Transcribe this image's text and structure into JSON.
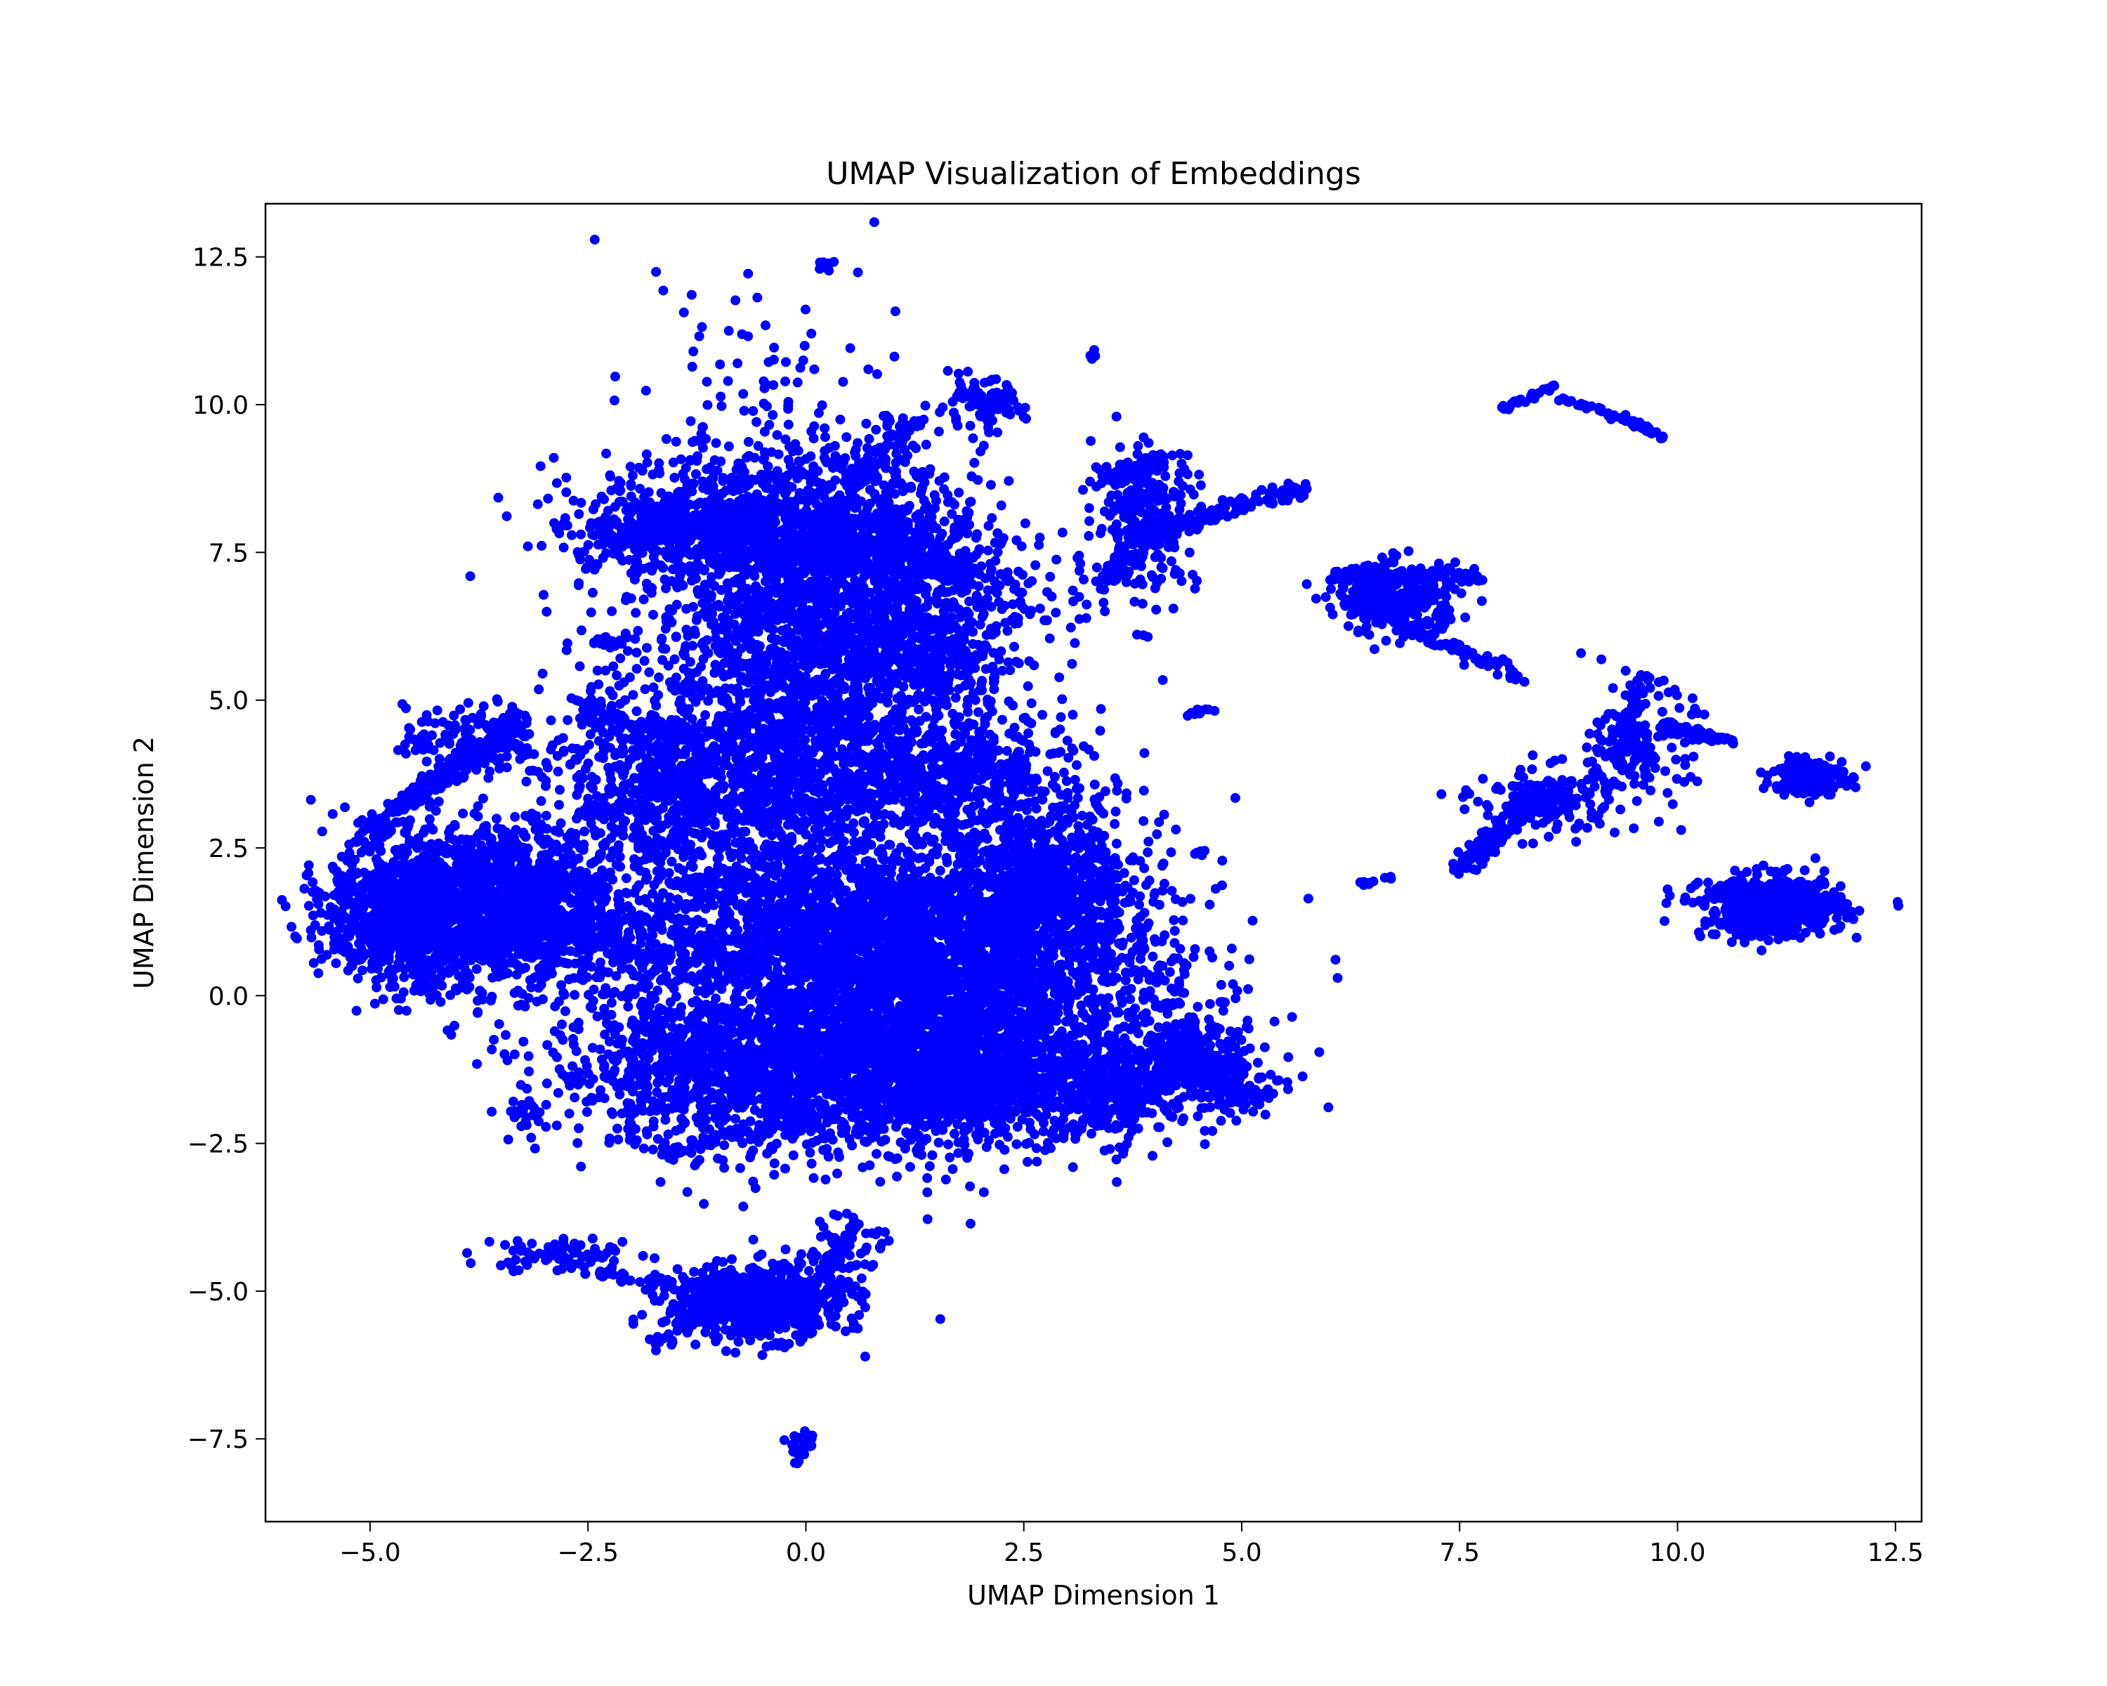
{
  "chart_data": {
    "type": "scatter",
    "title": "UMAP Visualization of Embeddings",
    "xlabel": "UMAP Dimension 1",
    "ylabel": "UMAP Dimension 2",
    "xlim": [
      -6.2,
      12.8
    ],
    "ylim": [
      -8.9,
      13.4
    ],
    "xticks": [
      -5.0,
      -2.5,
      0.0,
      2.5,
      5.0,
      7.5,
      10.0,
      12.5
    ],
    "xtick_labels": [
      "−5.0",
      "−2.5",
      "0.0",
      "2.5",
      "5.0",
      "7.5",
      "10.0",
      "12.5"
    ],
    "yticks": [
      -7.5,
      -5.0,
      -2.5,
      0.0,
      2.5,
      5.0,
      7.5,
      10.0,
      12.5
    ],
    "ytick_labels": [
      "−7.5",
      "−5.0",
      "−2.5",
      "0.0",
      "2.5",
      "5.0",
      "7.5",
      "10.0",
      "12.5"
    ],
    "grid": false,
    "point_color": "#0000ff",
    "clusters": [
      {
        "cx": -0.3,
        "cy": 4.5,
        "sx": 0.9,
        "sy": 2.6,
        "n": 2600
      },
      {
        "cx": -0.2,
        "cy": 8.0,
        "sx": 1.1,
        "sy": 0.6,
        "n": 900
      },
      {
        "cx": -1.5,
        "cy": 7.9,
        "sx": 0.6,
        "sy": 0.25,
        "n": 200
      },
      {
        "cx": 0.9,
        "cy": 6.8,
        "sx": 0.9,
        "sy": 0.7,
        "n": 700
      },
      {
        "cx": 1.2,
        "cy": 5.5,
        "sx": 0.6,
        "sy": 0.4,
        "n": 300
      },
      {
        "cx": 1.5,
        "cy": 3.8,
        "sx": 0.8,
        "sy": 0.5,
        "n": 600
      },
      {
        "cx": 1.8,
        "cy": 0.2,
        "sx": 1.2,
        "sy": 1.2,
        "n": 3000
      },
      {
        "cx": 1.6,
        "cy": -1.4,
        "sx": 0.9,
        "sy": 0.5,
        "n": 1200
      },
      {
        "cx": 2.7,
        "cy": 2.0,
        "sx": 0.5,
        "sy": 0.7,
        "n": 600
      },
      {
        "cx": 0.4,
        "cy": 1.0,
        "sx": 0.8,
        "sy": 0.7,
        "n": 700
      },
      {
        "cx": -0.8,
        "cy": -1.2,
        "sx": 1.1,
        "sy": 0.7,
        "n": 1200
      },
      {
        "cx": -1.8,
        "cy": 3.5,
        "sx": 0.6,
        "sy": 0.7,
        "n": 500
      },
      {
        "cx": -4.5,
        "cy": 1.4,
        "sx": 0.5,
        "sy": 0.6,
        "n": 1100
      },
      {
        "cx": -3.4,
        "cy": 1.6,
        "sx": 0.6,
        "sy": 0.7,
        "n": 900
      },
      {
        "cx": -3.8,
        "cy": 4.3,
        "sx": 0.4,
        "sy": 0.3,
        "n": 150
      },
      {
        "cx": -2.2,
        "cy": 1.0,
        "sx": 0.6,
        "sy": 0.5,
        "n": 300
      },
      {
        "cx": 4.4,
        "cy": -1.2,
        "sx": 0.5,
        "sy": 0.4,
        "n": 350
      },
      {
        "cx": 3.5,
        "cy": -1.9,
        "sx": 0.3,
        "sy": 0.3,
        "n": 100
      },
      {
        "cx": -0.6,
        "cy": -5.2,
        "sx": 0.5,
        "sy": 0.3,
        "n": 700
      },
      {
        "cx": -2.8,
        "cy": -4.4,
        "sx": 0.45,
        "sy": 0.15,
        "n": 80
      },
      {
        "cx": 0.4,
        "cy": -4.3,
        "sx": 0.25,
        "sy": 0.4,
        "n": 60
      },
      {
        "cx": -0.05,
        "cy": -7.6,
        "sx": 0.1,
        "sy": 0.15,
        "n": 30
      },
      {
        "cx": 0.2,
        "cy": 12.35,
        "sx": 0.05,
        "sy": 0.05,
        "n": 10
      },
      {
        "cx": 3.3,
        "cy": 10.85,
        "sx": 0.03,
        "sy": 0.05,
        "n": 6
      },
      {
        "cx": 2.0,
        "cy": 10.0,
        "sx": 0.25,
        "sy": 0.2,
        "n": 90
      },
      {
        "cx": 3.9,
        "cy": 8.1,
        "sx": 0.3,
        "sy": 0.6,
        "n": 250
      },
      {
        "cx": 6.8,
        "cy": 6.7,
        "sx": 0.35,
        "sy": 0.3,
        "n": 300
      },
      {
        "cx": 11.1,
        "cy": 1.5,
        "sx": 0.4,
        "sy": 0.25,
        "n": 600
      },
      {
        "cx": 11.5,
        "cy": 3.7,
        "sx": 0.2,
        "sy": 0.15,
        "n": 250
      },
      {
        "cx": 9.6,
        "cy": 4.2,
        "sx": 0.3,
        "sy": 0.5,
        "n": 150
      },
      {
        "cx": 8.5,
        "cy": 3.3,
        "sx": 0.4,
        "sy": 0.3,
        "n": 150
      },
      {
        "cx": 4.5,
        "cy": 4.8,
        "sx": 0.08,
        "sy": 0.04,
        "n": 10
      },
      {
        "cx": 4.5,
        "cy": 2.4,
        "sx": 0.05,
        "sy": 0.03,
        "n": 6
      },
      {
        "cx": -3.2,
        "cy": -2.0,
        "sx": 0.12,
        "sy": 0.12,
        "n": 20
      },
      {
        "cx": -2.2,
        "cy": 6.0,
        "sx": 0.2,
        "sy": 0.05,
        "n": 20
      }
    ],
    "strands": [
      {
        "x0": -2.3,
        "y0": 7.7,
        "x1": -0.8,
        "y1": 8.3,
        "n": 120,
        "w": 0.08
      },
      {
        "x0": 0.5,
        "y0": 8.7,
        "x1": 1.2,
        "y1": 9.7,
        "n": 60,
        "w": 0.08
      },
      {
        "x0": 0.8,
        "y0": 8.0,
        "x1": 1.8,
        "y1": 7.1,
        "n": 80,
        "w": 0.1
      },
      {
        "x0": -5.1,
        "y0": 2.6,
        "x1": -3.3,
        "y1": 4.7,
        "n": 200,
        "w": 0.1
      },
      {
        "x0": -2.6,
        "y0": 4.9,
        "x1": -1.3,
        "y1": 4.4,
        "n": 80,
        "w": 0.08
      },
      {
        "x0": -5.3,
        "y0": 1.1,
        "x1": -4.8,
        "y1": 1.1,
        "n": 30,
        "w": 0.03
      },
      {
        "x0": -1.7,
        "y0": -2.7,
        "x1": 0.1,
        "y1": -2.0,
        "n": 80,
        "w": 0.1
      },
      {
        "x0": 4.2,
        "y0": 7.9,
        "x1": 5.7,
        "y1": 8.6,
        "n": 120,
        "w": 0.07
      },
      {
        "x0": 3.4,
        "y0": 7.0,
        "x1": 4.2,
        "y1": 8.1,
        "n": 80,
        "w": 0.08
      },
      {
        "x0": 3.4,
        "y0": 8.7,
        "x1": 4.1,
        "y1": 9.1,
        "n": 60,
        "w": 0.07
      },
      {
        "x0": 6.0,
        "y0": 7.1,
        "x1": 7.7,
        "y1": 7.1,
        "n": 100,
        "w": 0.06
      },
      {
        "x0": 6.8,
        "y0": 6.3,
        "x1": 8.2,
        "y1": 5.4,
        "n": 80,
        "w": 0.06
      },
      {
        "x0": 8.0,
        "y0": 9.95,
        "x1": 8.6,
        "y1": 10.3,
        "n": 30,
        "w": 0.03
      },
      {
        "x0": 8.6,
        "y0": 10.1,
        "x1": 9.3,
        "y1": 9.8,
        "n": 25,
        "w": 0.03
      },
      {
        "x0": 9.4,
        "y0": 9.75,
        "x1": 9.85,
        "y1": 9.45,
        "n": 30,
        "w": 0.03
      },
      {
        "x0": 7.5,
        "y0": 2.1,
        "x1": 8.5,
        "y1": 3.5,
        "n": 150,
        "w": 0.08
      },
      {
        "x0": 9.3,
        "y0": 4.0,
        "x1": 9.6,
        "y1": 5.4,
        "n": 60,
        "w": 0.06
      },
      {
        "x0": 9.8,
        "y0": 4.6,
        "x1": 10.7,
        "y1": 4.3,
        "n": 50,
        "w": 0.04
      },
      {
        "x0": 6.3,
        "y0": 1.85,
        "x1": 6.7,
        "y1": 2.0,
        "n": 10,
        "w": 0.02
      },
      {
        "x0": -1.7,
        "y0": -5.9,
        "x1": -0.9,
        "y1": -5.0,
        "n": 40,
        "w": 0.05
      },
      {
        "x0": -2.5,
        "y0": -4.7,
        "x1": -1.0,
        "y1": -4.95,
        "n": 40,
        "w": 0.04
      },
      {
        "x0": 0.1,
        "y0": -4.8,
        "x1": 0.6,
        "y1": -3.9,
        "n": 40,
        "w": 0.05
      },
      {
        "x0": -1.5,
        "y0": 1.9,
        "x1": -0.6,
        "y1": 2.0,
        "n": 30,
        "w": 0.05
      },
      {
        "x0": 4.3,
        "y0": -0.8,
        "x1": 5.1,
        "y1": -1.8,
        "n": 120,
        "w": 0.15
      }
    ]
  }
}
